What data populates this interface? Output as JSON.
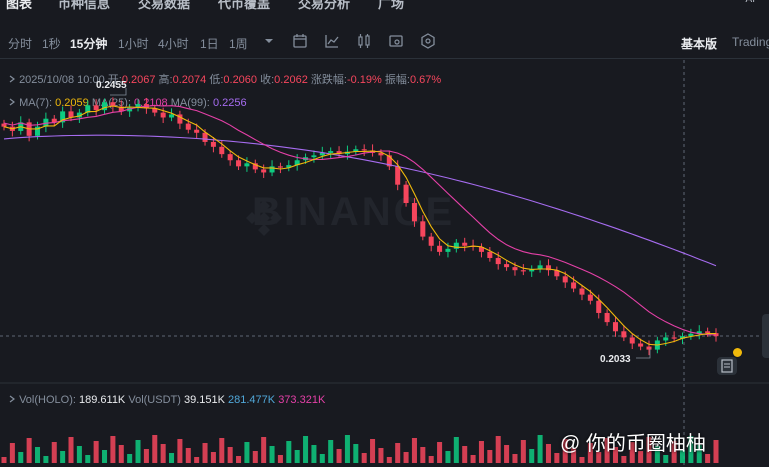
{
  "top_nav": {
    "tabs": [
      "图表",
      "币种信息",
      "交易数据",
      "代币覆盖",
      "交易分析",
      "广场"
    ],
    "ai_label": "AI"
  },
  "toolbar": {
    "intervals": [
      "分时",
      "1秒",
      "15分钟",
      "1小时",
      "4小时",
      "1日",
      "1周"
    ],
    "active_interval": "15分钟",
    "view_basic": "基本版",
    "view_tradingview": "Trading"
  },
  "ohlc": {
    "date": "2025/10/08 10:00",
    "open_label": "开:",
    "open": "0.2067",
    "high_label": "高:",
    "high": "0.2074",
    "low_label": "低:",
    "low": "0.2060",
    "close_label": "收:",
    "close": "0.2062",
    "change_label": "涨跌幅:",
    "change": "-0.19%",
    "amplitude_label": "振幅:",
    "amplitude": "0.67%"
  },
  "ma": {
    "ma7_label": "MA(7):",
    "ma7": "0.2059",
    "ma25_label": "MA(25):",
    "ma25": "0.2108",
    "ma99_label": "MA(99):",
    "ma99": "0.2256"
  },
  "chart_labels": {
    "max_price": "0.2455",
    "min_price": "0.2033",
    "watermark": "BINANCE"
  },
  "volume": {
    "holo_label": "Vol(HOLO):",
    "holo": "189.611K",
    "usdt_label": "Vol(USDT)",
    "usdt": "39.151K",
    "ma1": "281.477K",
    "ma2": "373.321K"
  },
  "signature": "@ 你的币圈柚柚",
  "colors": {
    "up": "#0ecb81",
    "down": "#f6465d",
    "ma7": "#f0b90b",
    "ma25": "#e440a7",
    "ma99": "#a66cf0",
    "background": "#181a20"
  },
  "chart_data": {
    "type": "candlestick",
    "interval": "15分钟",
    "y_max_label": 0.2455,
    "y_min_label": 0.2033,
    "last_close": 0.2062,
    "series": [
      {
        "name": "MA(7)",
        "last": 0.2059
      },
      {
        "name": "MA(25)",
        "last": 0.2108
      },
      {
        "name": "MA(99)",
        "last": 0.2256
      }
    ],
    "candles_approx": [
      0.2405,
      0.2398,
      0.2412,
      0.239,
      0.2405,
      0.2418,
      0.2412,
      0.243,
      0.242,
      0.2428,
      0.244,
      0.2432,
      0.2445,
      0.2438,
      0.243,
      0.2436,
      0.2442,
      0.2435,
      0.2428,
      0.242,
      0.2425,
      0.241,
      0.24,
      0.2395,
      0.238,
      0.2372,
      0.236,
      0.235,
      0.234,
      0.2345,
      0.2335,
      0.233,
      0.234,
      0.2338,
      0.2342,
      0.235,
      0.2355,
      0.2358,
      0.2362,
      0.2365,
      0.236,
      0.2364,
      0.2368,
      0.2366,
      0.2362,
      0.2358,
      0.234,
      0.231,
      0.228,
      0.225,
      0.2225,
      0.221,
      0.22,
      0.2205,
      0.2215,
      0.221,
      0.2208,
      0.22,
      0.219,
      0.218,
      0.2175,
      0.217,
      0.2168,
      0.2172,
      0.2178,
      0.217,
      0.216,
      0.215,
      0.214,
      0.213,
      0.212,
      0.21,
      0.2085,
      0.207,
      0.206,
      0.205,
      0.2045,
      0.204,
      0.2055,
      0.206,
      0.2058,
      0.2062,
      0.2066,
      0.207,
      0.2067,
      0.2062
    ]
  }
}
